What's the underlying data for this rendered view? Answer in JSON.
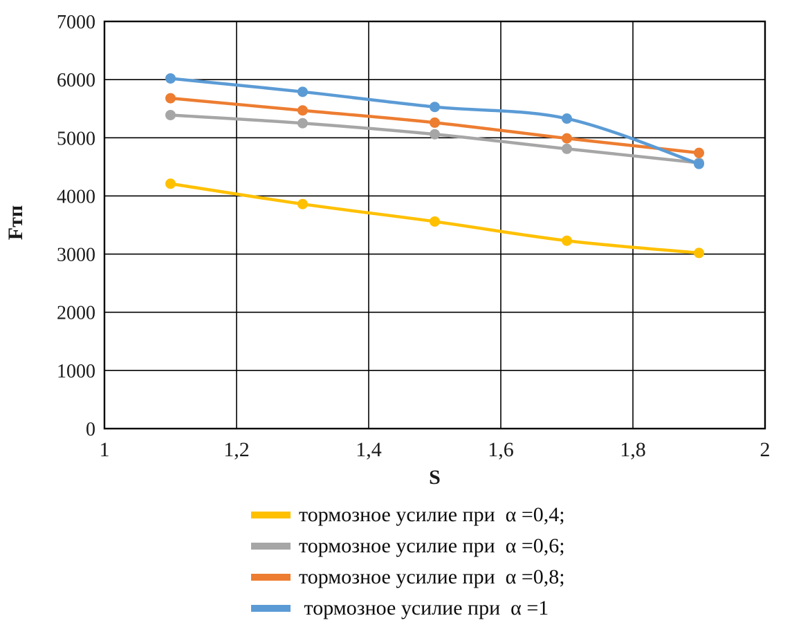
{
  "chart_data": {
    "type": "line",
    "title": "",
    "xlabel": "S",
    "ylabel": "Fтп",
    "xlim": [
      1,
      2
    ],
    "ylim": [
      0,
      7000
    ],
    "grid": "both",
    "legend_position": "bottom",
    "axis_color": "#000000",
    "x_tick_values": [
      1,
      1.2,
      1.4,
      1.6,
      1.8,
      2
    ],
    "x_tick_labels": [
      "1",
      "1,2",
      "1,4",
      "1,6",
      "1,8",
      "2"
    ],
    "y_tick_values": [
      0,
      1000,
      2000,
      3000,
      4000,
      5000,
      6000,
      7000
    ],
    "y_tick_labels": [
      "0",
      "1000",
      "2000",
      "3000",
      "4000",
      "5000",
      "6000",
      "7000"
    ],
    "x": [
      1.1,
      1.3,
      1.5,
      1.7,
      1.9
    ],
    "series": [
      {
        "name": "тормозное усилие при  α =0,4;",
        "color": "#FFC000",
        "values": [
          4210,
          3860,
          3560,
          3230,
          3020
        ]
      },
      {
        "name": "тормозное усилие при  α =0,6;",
        "color": "#A6A6A6",
        "values": [
          5390,
          5250,
          5060,
          4810,
          4570
        ]
      },
      {
        "name": "тормозное усилие при  α =0,8;",
        "color": "#ED7D31",
        "values": [
          5680,
          5470,
          5260,
          4990,
          4740
        ]
      },
      {
        "name": " тормозное усилие при  α =1",
        "color": "#5B9BD5",
        "values": [
          6020,
          5790,
          5530,
          5330,
          4550
        ]
      }
    ]
  }
}
